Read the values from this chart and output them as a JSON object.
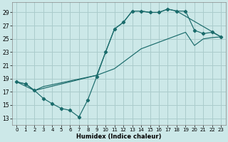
{
  "xlabel": "Humidex (Indice chaleur)",
  "bg_color": "#cce8e8",
  "grid_color": "#aacccc",
  "line_color": "#1a6b6b",
  "xlim": [
    -0.5,
    23.5
  ],
  "ylim": [
    12.0,
    30.5
  ],
  "xticks": [
    0,
    1,
    2,
    3,
    4,
    5,
    6,
    7,
    8,
    9,
    10,
    11,
    12,
    13,
    14,
    15,
    16,
    17,
    18,
    19,
    20,
    21,
    22,
    23
  ],
  "yticks": [
    13,
    15,
    17,
    19,
    21,
    23,
    25,
    27,
    29
  ],
  "line1_x": [
    0,
    1,
    2,
    3,
    4,
    5,
    6,
    7,
    8,
    9,
    10,
    11,
    12,
    13,
    14,
    15,
    16,
    17,
    18,
    19,
    20,
    21,
    22,
    23
  ],
  "line1_y": [
    18.5,
    18.2,
    17.2,
    16.0,
    15.2,
    14.5,
    14.2,
    13.2,
    15.8,
    19.3,
    23.0,
    26.5,
    27.5,
    29.2,
    29.2,
    29.0,
    29.0,
    29.5,
    29.2,
    29.2,
    26.3,
    25.8,
    26.0,
    25.3
  ],
  "line2_x": [
    0,
    1,
    2,
    3,
    9,
    10,
    11,
    12,
    13,
    14,
    15,
    16,
    17,
    18,
    19,
    20,
    21,
    22,
    23
  ],
  "line2_y": [
    18.5,
    18.2,
    17.2,
    17.8,
    19.5,
    20.0,
    20.5,
    21.5,
    22.5,
    23.5,
    24.0,
    24.5,
    25.0,
    25.5,
    26.0,
    24.0,
    25.0,
    25.2,
    25.3
  ],
  "line3_x": [
    0,
    2,
    9,
    10,
    11,
    12,
    13,
    14,
    15,
    16,
    17,
    18,
    23
  ],
  "line3_y": [
    18.5,
    17.2,
    19.5,
    23.0,
    26.5,
    27.5,
    29.2,
    29.2,
    29.0,
    29.0,
    29.5,
    29.2,
    25.3
  ]
}
